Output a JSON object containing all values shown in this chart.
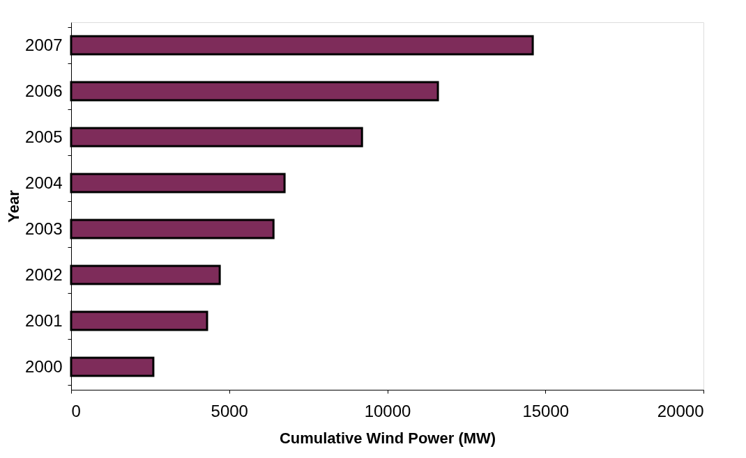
{
  "chart_data": {
    "type": "bar",
    "orientation": "horizontal",
    "xlabel": "Cumulative Wind Power (MW)",
    "ylabel": "Year",
    "categories": [
      "2007",
      "2006",
      "2005",
      "2004",
      "2003",
      "2002",
      "2001",
      "2000"
    ],
    "values": [
      14600,
      11600,
      9200,
      6750,
      6400,
      4700,
      4300,
      2600
    ],
    "color": "#7e2c5a",
    "xlim": [
      0,
      20000
    ],
    "xticks": [
      0,
      5000,
      10000,
      15000,
      20000
    ],
    "grid": false
  }
}
